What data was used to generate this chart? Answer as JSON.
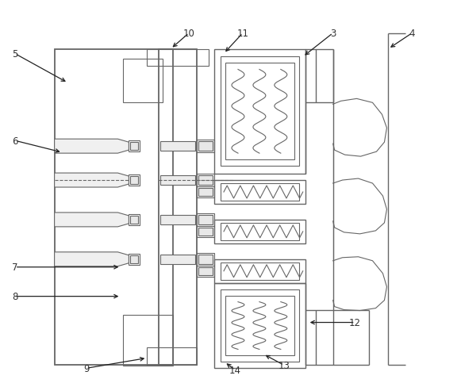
{
  "bg_color": "#ffffff",
  "line_color": "#666666",
  "label_color": "#333333",
  "figsize": [
    5.81,
    4.89
  ],
  "dpi": 100,
  "labels_data": [
    [
      "5",
      85,
      105,
      18,
      68
    ],
    [
      "6",
      78,
      193,
      18,
      178
    ],
    [
      "7",
      152,
      338,
      18,
      338
    ],
    [
      "8",
      152,
      375,
      18,
      375
    ],
    [
      "9",
      185,
      453,
      108,
      466
    ],
    [
      "10",
      215,
      62,
      238,
      42
    ],
    [
      "11",
      282,
      68,
      306,
      42
    ],
    [
      "3",
      382,
      72,
      420,
      42
    ],
    [
      "4",
      490,
      62,
      520,
      42
    ],
    [
      "12",
      388,
      408,
      448,
      408
    ],
    [
      "13",
      332,
      448,
      358,
      462
    ],
    [
      "14",
      283,
      458,
      296,
      468
    ]
  ]
}
